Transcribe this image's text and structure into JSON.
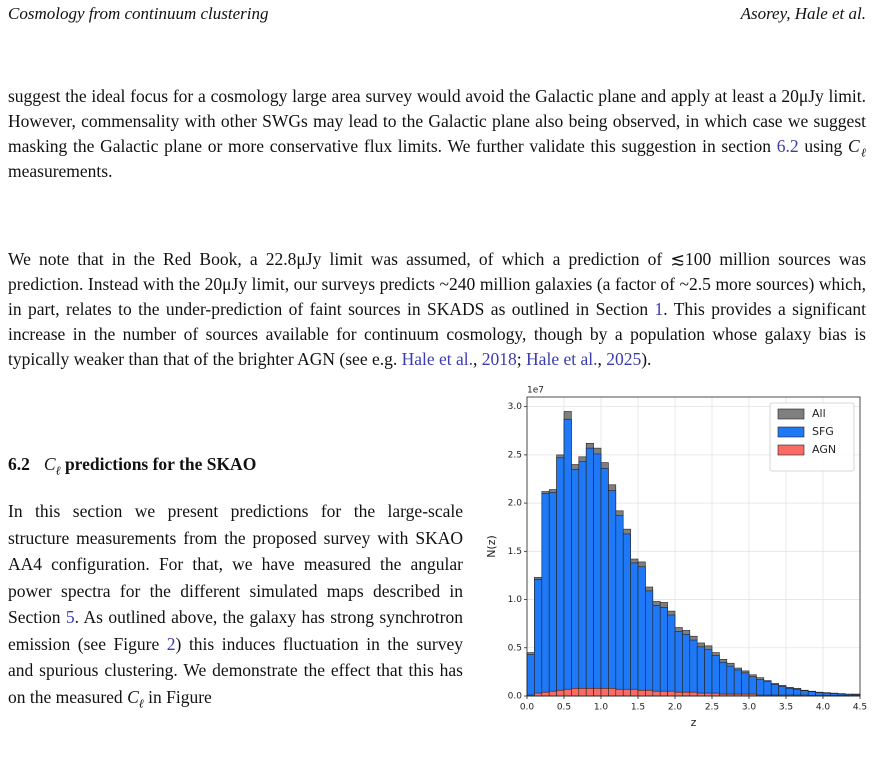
{
  "header": {
    "title": "Cosmology from continuum clustering",
    "authors": "Asorey, Hale et al."
  },
  "paragraphs": [
    [
      "suggest the ideal focus for a cosmology large area survey would avoid the Galactic plane and apply at least a 20μJy limit. However, commensality with other SWGs may lead to the Galactic plane also being observed, in which case we suggest masking the Galactic plane or more conservative flux limits. We further validate this suggestion in section ",
      "6.2",
      " using ",
      "C",
      "ℓ",
      " measurements."
    ],
    [
      "We note that in the Red Book, a 22.8μJy limit was assumed, of which a prediction of ≲100 million sources was prediction. Instead with the 20μJy limit, our surveys predicts ~240 million galaxies (a factor of ~2.5 more sources) which, in part, relates to the under-prediction of faint sources in SKADS as outlined in Section ",
      "1",
      ". This provides a significant increase in the number of sources available for continuum cosmology, though by a population whose galaxy bias is typically weaker than that of the brighter AGN (see e.g. ",
      "Hale et al.",
      ", ",
      "2018",
      "; ",
      "Hale et al.",
      ", ",
      "2025",
      ")."
    ]
  ],
  "section": {
    "number": "6.2",
    "title": [
      "C",
      "ℓ",
      " predictions for the SKAO"
    ]
  },
  "column_paragraph": [
    "In this section we present predictions for the large-scale structure measurements from the proposed survey with SKAO AA4 configuration. For that, we have measured the angular power spectra for the different simulated maps described in Section ",
    "5",
    ". As outlined above, the galaxy has strong synchrotron emission (see Figure ",
    "2",
    ") this induces fluctuation in the survey and spurious clustering. We demonstrate the effect that this has on the measured ",
    "C",
    "ℓ",
    " in Figure"
  ],
  "chart_data": {
    "type": "histogram",
    "xlabel": "z",
    "ylabel": "N(z)",
    "y_offset_label": "1e7",
    "bins": [
      0.0,
      0.1,
      0.2,
      0.3,
      0.4,
      0.5,
      0.6,
      0.7,
      0.8,
      0.9,
      1.0,
      1.1,
      1.2,
      1.3,
      1.4,
      1.5,
      1.6,
      1.7,
      1.8,
      1.9,
      2.0,
      2.1,
      2.2,
      2.3,
      2.4,
      2.5,
      2.6,
      2.7,
      2.8,
      2.9,
      3.0,
      3.1,
      3.2,
      3.3,
      3.4,
      3.5,
      3.6,
      3.7,
      3.8,
      3.9,
      4.0,
      4.1,
      4.2,
      4.3,
      4.4,
      4.5
    ],
    "series": [
      {
        "name": "All",
        "color": "#7f7f7f",
        "values": [
          0.45,
          1.23,
          2.12,
          2.14,
          2.5,
          2.95,
          2.4,
          2.48,
          2.62,
          2.57,
          2.42,
          2.19,
          1.92,
          1.73,
          1.42,
          1.39,
          1.13,
          0.98,
          0.97,
          0.88,
          0.71,
          0.68,
          0.62,
          0.55,
          0.52,
          0.45,
          0.38,
          0.34,
          0.29,
          0.26,
          0.22,
          0.19,
          0.16,
          0.13,
          0.11,
          0.09,
          0.08,
          0.06,
          0.05,
          0.04,
          0.035,
          0.03,
          0.025,
          0.02,
          0.02
        ]
      },
      {
        "name": "SFG",
        "color": "#1f78f5",
        "values": [
          0.43,
          1.21,
          2.1,
          2.11,
          2.47,
          2.87,
          2.35,
          2.43,
          2.57,
          2.51,
          2.36,
          2.13,
          1.87,
          1.68,
          1.38,
          1.34,
          1.09,
          0.94,
          0.92,
          0.84,
          0.67,
          0.64,
          0.58,
          0.51,
          0.48,
          0.42,
          0.35,
          0.31,
          0.27,
          0.24,
          0.2,
          0.17,
          0.15,
          0.12,
          0.1,
          0.08,
          0.07,
          0.055,
          0.045,
          0.035,
          0.03,
          0.025,
          0.02,
          0.018,
          0.015
        ]
      },
      {
        "name": "AGN",
        "color": "#fa6b63",
        "values": [
          0.01,
          0.03,
          0.04,
          0.05,
          0.06,
          0.07,
          0.08,
          0.08,
          0.08,
          0.08,
          0.08,
          0.08,
          0.07,
          0.07,
          0.07,
          0.06,
          0.06,
          0.05,
          0.05,
          0.05,
          0.04,
          0.04,
          0.04,
          0.03,
          0.03,
          0.03,
          0.02,
          0.02,
          0.02,
          0.02,
          0.02,
          0.01,
          0.01,
          0.01,
          0.01,
          0.01,
          0.01,
          0.01,
          0.005,
          0.005,
          0.005,
          0.005,
          0.005,
          0.005,
          0.005
        ]
      }
    ],
    "xlim": [
      0,
      4.5
    ],
    "ylim": [
      0,
      3.1
    ],
    "xticks": [
      {
        "value": 0,
        "label": "0.0"
      },
      0.5,
      {
        "value": 1,
        "label": "1.0"
      },
      1.5,
      {
        "value": 2,
        "label": "2.0"
      },
      2.5,
      {
        "value": 3,
        "label": "3.0"
      },
      3.5,
      {
        "value": 4,
        "label": "4.0"
      },
      4.5
    ],
    "yticks": [
      {
        "value": 0,
        "label": "0.0"
      },
      0.5,
      {
        "value": 1,
        "label": "1.0"
      },
      1.5,
      {
        "value": 2,
        "label": "2.0"
      },
      2.5,
      {
        "value": 3,
        "label": "3.0"
      }
    ],
    "grid": true,
    "legend": "upper right"
  }
}
